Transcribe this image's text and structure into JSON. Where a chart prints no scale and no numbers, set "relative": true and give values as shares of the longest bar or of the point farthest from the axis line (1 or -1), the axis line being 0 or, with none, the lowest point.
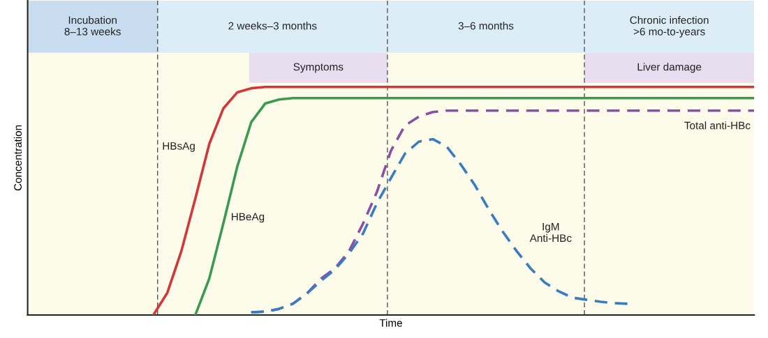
{
  "chart_data": {
    "type": "line",
    "relative": true,
    "xlabel": "Time",
    "ylabel": "Concentration",
    "categories": [
      null,
      null,
      null,
      null,
      null,
      null,
      null,
      null,
      null,
      null,
      null,
      null,
      null,
      null,
      null,
      null,
      null,
      null,
      null,
      null,
      null,
      null,
      null,
      null,
      null,
      null,
      null,
      null,
      null,
      null,
      null,
      null,
      null,
      null,
      null,
      null,
      null,
      null,
      null,
      null,
      null,
      null,
      null,
      null,
      null,
      null,
      null,
      null,
      null,
      null,
      null,
      null,
      null
    ],
    "series": [
      {
        "name": "HBsAg",
        "color": "#d2383a",
        "line_style": "solid",
        "values": [
          null,
          null,
          null,
          null,
          null,
          null,
          null,
          null,
          null,
          0,
          0.098,
          0.28,
          0.51,
          0.75,
          0.905,
          0.976,
          0.994,
          1,
          1,
          1,
          1,
          1,
          1,
          1,
          1,
          1,
          1,
          1,
          1,
          1,
          1,
          1,
          1,
          1,
          1,
          1,
          1,
          1,
          1,
          1,
          1,
          1,
          1,
          1,
          1,
          1,
          1,
          1,
          1,
          1,
          1,
          1,
          1
        ]
      },
      {
        "name": "HBeAg",
        "color": "#3a9a4d",
        "line_style": "solid",
        "values": [
          null,
          null,
          null,
          null,
          null,
          null,
          null,
          null,
          null,
          null,
          null,
          null,
          0,
          0.16,
          0.4,
          0.65,
          0.845,
          0.927,
          0.945,
          0.951,
          0.951,
          0.951,
          0.951,
          0.951,
          0.951,
          0.951,
          0.951,
          0.951,
          0.951,
          0.951,
          0.951,
          0.951,
          0.951,
          0.951,
          0.951,
          0.951,
          0.951,
          0.951,
          0.951,
          0.951,
          0.951,
          0.951,
          0.951,
          0.951,
          0.951,
          0.951,
          0.951,
          0.951,
          0.951,
          0.951,
          0.951,
          0.951,
          0.951
        ]
      },
      {
        "name": "Total anti-HBc",
        "color": "#8a4fa8",
        "line_style": "dashed",
        "values": [
          null,
          null,
          null,
          null,
          null,
          null,
          null,
          null,
          null,
          null,
          null,
          null,
          null,
          null,
          null,
          null,
          0.012,
          0.015,
          0.027,
          0.05,
          0.095,
          0.16,
          0.204,
          0.28,
          0.4,
          0.54,
          0.72,
          0.83,
          0.87,
          0.89,
          0.896,
          0.896,
          0.896,
          0.896,
          0.896,
          0.896,
          0.896,
          0.896,
          0.896,
          0.896,
          0.896,
          0.896,
          0.896,
          0.896,
          0.896,
          0.896,
          0.896,
          0.896,
          0.896,
          0.896,
          0.896,
          0.896,
          0.896
        ]
      },
      {
        "name": "IgM\nAnti-HBc",
        "color": "#3a7cc0",
        "line_style": "dashed",
        "values": [
          null,
          null,
          null,
          null,
          null,
          null,
          null,
          null,
          null,
          null,
          null,
          null,
          null,
          null,
          null,
          null,
          0.012,
          0.015,
          0.027,
          0.05,
          0.095,
          0.15,
          0.2,
          0.27,
          0.357,
          0.49,
          0.6,
          0.707,
          0.76,
          0.771,
          0.738,
          0.66,
          0.57,
          0.463,
          0.366,
          0.28,
          0.204,
          0.143,
          0.104,
          0.076,
          0.067,
          0.058,
          0.052,
          0.049,
          null,
          null,
          null,
          null,
          null,
          null,
          null,
          null,
          null
        ]
      }
    ],
    "annotations": [
      "Incubation\n8–13 weeks",
      "2 weeks–3 months",
      "3–6 months",
      "Chronic infection\n>6 mo-to-years",
      "Symptoms",
      "Liver damage"
    ]
  }
}
